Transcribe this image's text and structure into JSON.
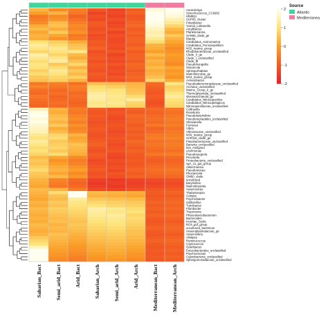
{
  "chart_data": {
    "type": "heatmap",
    "columns": [
      "Saharian_Bact",
      "Semi_arid_Bact",
      "Arid_Bact",
      "Saharian_Arch",
      "Semi_arid_Arch",
      "Arid_Arch",
      "Mediterranean_Bact",
      "Mediterranean_Arch"
    ],
    "column_source": [
      "Atlantic",
      "Atlantic",
      "Atlantic",
      "Atlantic",
      "Atlantic",
      "Atlantic",
      "Mediterranea",
      "Mediterranea"
    ],
    "rows": [
      "Aurantivirga",
      "Synechococcus_CC9902",
      "HIMB11",
      "SUP05_cluster",
      "Polaribacter",
      "Yoonia_Loktanella",
      "Amylibacter",
      "Planktomarina",
      "SAR86_clade_ge",
      "Blautia",
      "Candidatus_Actinomarina",
      "Candidatus_Puniceispirillum",
      "NS5_marine_group",
      "Rhodobacteraceae_unclassified",
      "Clade_II_ge",
      "Clade_I_unclassified",
      "Clade_Ib",
      "Pseudohongiella",
      "Glaciecola",
      "Sphingorhabdus",
      "Marinimicrobia_ge",
      "NS4_marine_group",
      "Acinetobacter",
      "Pseudoalteromonadaceae_unclassified",
      "Archaea_unclassified",
      "Marine_Group_II_ge",
      "Thermoplasmata_unclassified",
      "Woesearchaeota_ge",
      "Candidatus_Nitrosopumilus",
      "Candidatus_Nitrosopelagicus",
      "Nitrosopumilaceae_unclassified",
      "Collinsella",
      "Roseburia",
      "Pseudobutyrivibrio",
      "Pseudomonadales_unclassified",
      "Shewanella",
      "Formosa",
      "Vibrio",
      "Vibrionaceae_unclassified",
      "NS9_marine_group",
      "SAR116_clade_ge",
      "Flavobacteriaceae_unclassified",
      "Bacteria_unclassified",
      "Not_Assigned",
      "Litorimonas",
      "Pseudoruegeria",
      "Prevotella",
      "Proteobacteria_unclassified",
      "vgA_11_gut_group",
      "Akkermansia",
      "Pseudomonas",
      "Phocaeicola",
      "OM60_clade",
      "uncultured",
      "Butyrivibrio",
      "Marinobryantia",
      "Anaerovorax",
      "Thalassospira",
      "Cobetia",
      "Psychrobacter",
      "Solibacillus",
      "Turicibacter",
      "Fibrobacter",
      "Treponema",
      "Phascolarctobacterium",
      "Bacteroides",
      "Incertae_Sedis",
      "RC9_gut_group",
      "uncultured_bacterium",
      "Anaeroplasmataceae_ge",
      "Anaerovibrio",
      "Alistipes",
      "Ruminococcus",
      "Coprococcus",
      "Odoribacter",
      "Enterobacterales_unclassified",
      "Psychromonas",
      "Cyanobacteria_unclassified",
      "Sphingomonadaceae_unclassified"
    ],
    "values": [
      [
        0.3,
        -0.3,
        -0.5,
        -1.1,
        -1.4,
        -1.0,
        1.8,
        2.0
      ],
      [
        0.0,
        0.3,
        -0.6,
        -1.4,
        -1.3,
        -0.9,
        2.1,
        1.9
      ],
      [
        -0.6,
        -0.3,
        -0.9,
        -1.2,
        -1.4,
        -1.1,
        2.2,
        1.8
      ],
      [
        -0.5,
        -0.2,
        -0.7,
        -1.3,
        -1.2,
        -1.0,
        2.0,
        1.5
      ],
      [
        -0.3,
        0.4,
        -0.5,
        -1.0,
        -1.4,
        -0.9,
        1.9,
        1.2
      ],
      [
        0.2,
        0.5,
        -0.3,
        -1.1,
        -1.3,
        -0.8,
        1.8,
        0.8
      ],
      [
        0.4,
        0.2,
        -0.4,
        -1.2,
        -1.1,
        -1.0,
        1.6,
        0.4
      ],
      [
        0.1,
        0.6,
        -0.2,
        -1.1,
        -1.4,
        -0.9,
        1.4,
        0.2
      ],
      [
        0.3,
        0.1,
        -0.6,
        -1.3,
        -1.2,
        -1.0,
        1.5,
        0.6
      ],
      [
        0.2,
        -0.2,
        -0.5,
        -1.2,
        -1.3,
        -0.9,
        1.2,
        0.3
      ],
      [
        1.0,
        0.7,
        0.2,
        -1.0,
        -1.3,
        -0.9,
        0.9,
        0.1
      ],
      [
        1.3,
        0.9,
        0.5,
        -1.1,
        -1.2,
        -1.0,
        0.3,
        -0.1
      ],
      [
        1.1,
        1.2,
        0.6,
        -0.9,
        -1.3,
        -0.8,
        0.2,
        -0.3
      ],
      [
        0.8,
        1.0,
        1.1,
        -1.2,
        -1.1,
        -1.0,
        0.0,
        -0.2
      ],
      [
        1.4,
        0.8,
        0.4,
        -1.1,
        -1.4,
        -0.9,
        0.4,
        0.0
      ],
      [
        1.2,
        1.1,
        0.2,
        -1.0,
        -1.2,
        -0.9,
        0.1,
        -0.1
      ],
      [
        0.9,
        1.3,
        0.5,
        -1.2,
        -1.3,
        -1.0,
        0.3,
        -0.2
      ],
      [
        1.1,
        0.6,
        0.8,
        -1.0,
        -1.1,
        -0.8,
        0.2,
        -0.3
      ],
      [
        1.0,
        0.9,
        0.3,
        -1.1,
        -1.3,
        -0.9,
        0.4,
        0.1
      ],
      [
        0.7,
        1.2,
        0.6,
        -1.2,
        -1.2,
        -1.0,
        0.2,
        -0.1
      ],
      [
        0.9,
        1.0,
        0.4,
        -1.0,
        -1.3,
        -0.9,
        0.3,
        0.0
      ],
      [
        0.6,
        0.8,
        0.7,
        -1.1,
        -1.1,
        -0.8,
        0.5,
        -0.2
      ],
      [
        0.5,
        0.7,
        0.3,
        -1.2,
        -1.2,
        -0.9,
        0.8,
        0.2
      ],
      [
        -0.6,
        -0.5,
        -0.7,
        0.5,
        0.4,
        0.3,
        -0.8,
        1.1
      ],
      [
        -0.4,
        -0.6,
        -0.5,
        0.9,
        0.7,
        0.4,
        -0.9,
        0.7
      ],
      [
        -0.7,
        -0.8,
        -0.6,
        1.0,
        1.0,
        0.5,
        -1.0,
        0.8
      ],
      [
        -0.8,
        -0.7,
        -0.8,
        1.3,
        1.1,
        0.6,
        -1.1,
        1.1
      ],
      [
        -0.6,
        -0.9,
        -0.7,
        1.4,
        1.2,
        0.9,
        -1.0,
        1.3
      ],
      [
        -0.7,
        -0.8,
        -0.8,
        1.3,
        1.1,
        1.3,
        -1.1,
        1.0
      ],
      [
        -0.8,
        -0.7,
        -0.9,
        1.1,
        1.2,
        0.8,
        -1.2,
        0.9
      ],
      [
        -0.9,
        -0.8,
        -0.8,
        1.2,
        1.0,
        0.7,
        -1.1,
        0.8
      ],
      [
        1.5,
        0.3,
        -0.5,
        -1.0,
        -1.2,
        -0.9,
        -0.8,
        -0.6
      ],
      [
        1.9,
        0.2,
        -0.6,
        -1.1,
        -1.1,
        -1.0,
        -0.9,
        -0.7
      ],
      [
        2.0,
        0.4,
        -0.4,
        -1.0,
        -1.2,
        -0.8,
        -0.8,
        -0.6
      ],
      [
        1.8,
        0.5,
        -0.3,
        -1.1,
        -1.3,
        -0.9,
        -0.7,
        -0.5
      ],
      [
        1.9,
        0.3,
        -0.5,
        -1.2,
        -1.2,
        -0.9,
        -0.8,
        -0.6
      ],
      [
        1.7,
        0.6,
        -0.2,
        -1.1,
        -1.1,
        -1.0,
        -0.6,
        -0.5
      ],
      [
        1.6,
        0.2,
        -0.4,
        -1.0,
        -1.2,
        -0.9,
        -0.9,
        -0.7
      ],
      [
        1.5,
        0.4,
        -0.3,
        -1.1,
        -1.3,
        -1.0,
        -0.8,
        -0.6
      ],
      [
        1.2,
        0.8,
        0.3,
        -1.2,
        -1.2,
        -0.9,
        -0.6,
        -0.5
      ],
      [
        1.0,
        0.9,
        0.1,
        -1.1,
        -1.1,
        -1.0,
        -0.5,
        -0.4
      ],
      [
        1.3,
        0.6,
        0.2,
        -1.0,
        -1.2,
        -0.8,
        -0.7,
        -0.6
      ],
      [
        1.1,
        0.7,
        0.5,
        -0.9,
        -1.3,
        -0.9,
        -0.6,
        -0.5
      ],
      [
        0.9,
        0.8,
        0.4,
        -1.1,
        -1.2,
        -1.0,
        -0.7,
        -0.6
      ],
      [
        1.0,
        0.6,
        0.3,
        -1.2,
        -1.1,
        -0.9,
        -0.8,
        -0.7
      ],
      [
        0.8,
        0.9,
        0.2,
        -1.0,
        -1.3,
        -1.0,
        -0.6,
        -0.5
      ],
      [
        0.4,
        0.1,
        -0.3,
        -1.1,
        -1.4,
        -1.1,
        -0.9,
        -0.8
      ],
      [
        0.6,
        -0.2,
        -0.5,
        -1.3,
        -1.2,
        -1.0,
        -1.0,
        -0.9
      ],
      [
        0.5,
        0.0,
        -0.4,
        -1.2,
        -1.3,
        -1.1,
        -0.9,
        -0.8
      ],
      [
        0.7,
        0.2,
        -0.2,
        -1.1,
        -1.2,
        -1.0,
        -0.8,
        -0.7
      ],
      [
        0.9,
        0.3,
        0.0,
        -1.0,
        -1.3,
        -0.9,
        -0.7,
        -0.6
      ],
      [
        0.6,
        0.1,
        -0.3,
        -1.2,
        -1.1,
        -1.0,
        -0.8,
        -0.7
      ],
      [
        0.5,
        0.4,
        -0.1,
        -1.1,
        -1.2,
        -0.9,
        -0.9,
        -0.8
      ],
      [
        0.3,
        -0.4,
        -0.8,
        -1.5,
        -1.6,
        -1.4,
        -1.3,
        -1.2
      ],
      [
        0.2,
        -0.5,
        -0.9,
        -1.6,
        -1.5,
        -1.5,
        -1.4,
        -1.3
      ],
      [
        0.1,
        -0.6,
        -0.8,
        -1.5,
        -1.6,
        -1.4,
        -1.3,
        -1.2
      ],
      [
        0.4,
        0.3,
        -0.5,
        -1.3,
        -1.4,
        -1.2,
        -1.1,
        -1.0
      ],
      [
        0.3,
        0.9,
        2.2,
        0.4,
        0.3,
        0.2,
        -1.0,
        -0.9
      ],
      [
        0.2,
        0.5,
        2.1,
        0.3,
        0.2,
        0.1,
        -1.1,
        -1.0
      ],
      [
        0.1,
        0.4,
        1.3,
        0.6,
        0.5,
        0.4,
        -1.0,
        -0.9
      ],
      [
        0.3,
        0.6,
        1.1,
        0.8,
        0.7,
        0.6,
        -0.9,
        -0.8
      ],
      [
        0.2,
        0.5,
        1.0,
        1.0,
        0.8,
        0.7,
        -1.0,
        -0.9
      ],
      [
        0.4,
        0.7,
        0.9,
        1.4,
        1.2,
        0.9,
        -0.9,
        -0.8
      ],
      [
        0.3,
        0.6,
        0.8,
        1.3,
        1.1,
        1.0,
        -1.0,
        -0.9
      ],
      [
        0.2,
        0.5,
        0.7,
        1.2,
        1.3,
        0.8,
        -0.9,
        -0.8
      ],
      [
        0.3,
        0.4,
        0.6,
        1.1,
        1.2,
        0.9,
        -1.0,
        -0.9
      ],
      [
        0.2,
        0.5,
        0.5,
        1.0,
        1.1,
        0.8,
        -1.1,
        -1.0
      ],
      [
        0.4,
        0.3,
        0.6,
        0.9,
        1.0,
        0.7,
        -1.0,
        -0.9
      ],
      [
        0.3,
        0.4,
        0.5,
        0.8,
        0.9,
        0.6,
        -0.9,
        -0.8
      ],
      [
        0.2,
        0.3,
        0.4,
        0.7,
        0.8,
        0.5,
        -1.0,
        -0.9
      ],
      [
        0.3,
        0.5,
        0.3,
        0.6,
        0.7,
        0.5,
        -1.1,
        -1.0
      ],
      [
        0.6,
        0.4,
        0.2,
        0.5,
        0.6,
        0.4,
        -1.0,
        -0.9
      ],
      [
        0.8,
        0.3,
        0.1,
        0.4,
        0.5,
        0.3,
        -0.9,
        -0.8
      ],
      [
        1.0,
        0.2,
        0.0,
        0.3,
        0.4,
        0.2,
        -1.0,
        -0.9
      ],
      [
        1.6,
        0.1,
        -0.1,
        0.2,
        0.3,
        0.1,
        -1.1,
        -1.0
      ],
      [
        2.0,
        0.0,
        -0.2,
        0.1,
        0.2,
        0.0,
        -1.0,
        -0.9
      ],
      [
        2.2,
        -0.1,
        -0.3,
        0.0,
        0.1,
        -0.1,
        -1.1,
        -1.0
      ],
      [
        2.1,
        -0.2,
        -0.4,
        -0.1,
        0.0,
        -0.2,
        -1.0,
        -0.9
      ],
      [
        2.2,
        -0.3,
        -0.5,
        -0.2,
        -0.1,
        -0.3,
        -1.1,
        -1.0
      ]
    ],
    "color_scale": {
      "ticks": [
        "2",
        "1",
        "0",
        "-1",
        "-2"
      ],
      "range": [
        -2,
        2
      ],
      "low_color": "#e8212b",
      "mid_color": "#fb9f28",
      "high_color": "#fffff0"
    },
    "legend": {
      "title": "Source",
      "entries": [
        {
          "label": "Atlantic",
          "color": "#3ed69b"
        },
        {
          "label": "Mediterranea",
          "color": "#f27ba0"
        }
      ]
    },
    "grid": false,
    "legend_position": "top-right"
  }
}
